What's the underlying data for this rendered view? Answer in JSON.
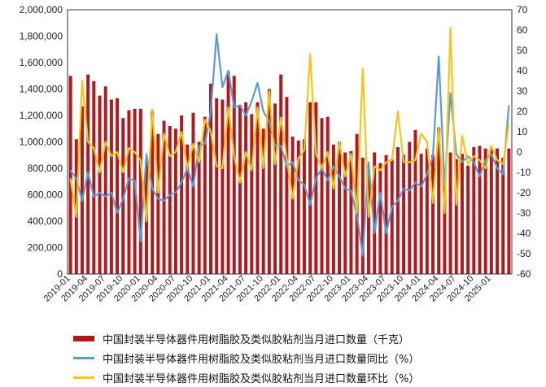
{
  "chart_data": {
    "type": "bar+line",
    "title": "",
    "months": [
      "2019-01",
      "2019-02",
      "2019-03",
      "2019-04",
      "2019-05",
      "2019-06",
      "2019-07",
      "2019-08",
      "2019-09",
      "2019-10",
      "2019-11",
      "2019-12",
      "2020-01",
      "2020-02",
      "2020-03",
      "2020-04",
      "2020-05",
      "2020-06",
      "2020-07",
      "2020-08",
      "2020-09",
      "2020-10",
      "2020-11",
      "2020-12",
      "2021-01",
      "2021-02",
      "2021-03",
      "2021-04",
      "2021-05",
      "2021-06",
      "2021-07",
      "2021-08",
      "2021-09",
      "2021-10",
      "2021-11",
      "2021-12",
      "2022-01",
      "2022-02",
      "2022-03",
      "2022-04",
      "2022-05",
      "2022-06",
      "2022-07",
      "2022-08",
      "2022-09",
      "2022-10",
      "2022-11",
      "2022-12",
      "2023-01",
      "2023-02",
      "2023-03",
      "2023-04",
      "2023-05",
      "2023-06",
      "2023-07",
      "2023-08",
      "2023-09",
      "2023-10",
      "2023-11",
      "2023-12",
      "2024-01",
      "2024-02",
      "2024-03",
      "2024-04",
      "2024-05",
      "2024-06",
      "2024-07",
      "2024-08",
      "2024-09",
      "2024-10",
      "2024-11",
      "2024-12",
      "2025-01",
      "2025-02",
      "2025-03",
      "2025-04"
    ],
    "x_tick_labels": [
      "2019-01",
      "2019-04",
      "2019-07",
      "2019-10",
      "2020-01",
      "2020-04",
      "2020-07",
      "2020-10",
      "2021-01",
      "2021-04",
      "2021-07",
      "2021-10",
      "2022-01",
      "2022-04",
      "2022-07",
      "2022-10",
      "2023-01",
      "2023-04",
      "2023-07",
      "2023-10",
      "2024-01",
      "2024-04",
      "2024-07",
      "2024-10",
      "2025-01"
    ],
    "y_left": {
      "min": 0,
      "max": 2000000,
      "step": 200000,
      "tick_labels": [
        "0",
        "200,000",
        "400,000",
        "600,000",
        "800,000",
        "1,000,000",
        "1,200,000",
        "1,400,000",
        "1,600,000",
        "1,800,000",
        "2,000,000"
      ]
    },
    "y_right": {
      "min": -60,
      "max": 70,
      "step": 10,
      "tick_labels": [
        "-60",
        "-50",
        "-40",
        "-30",
        "-20",
        "-10",
        "0",
        "10",
        "20",
        "30",
        "40",
        "50",
        "60",
        "70"
      ]
    },
    "series": [
      {
        "name": "中国封装半导体器件用树脂胶及类似胶粘剂当月进口数量（千克）",
        "type": "bar",
        "axis": "left",
        "color": "#b5161a",
        "values": [
          1500000,
          1020000,
          1270000,
          1510000,
          1460000,
          1350000,
          1420000,
          1320000,
          1330000,
          1180000,
          1240000,
          1250000,
          1250000,
          850000,
          1230000,
          1060000,
          1160000,
          1120000,
          1100000,
          1200000,
          980000,
          1220000,
          1000000,
          1190000,
          1440000,
          1330000,
          1320000,
          1530000,
          1500000,
          1280000,
          1300000,
          1210000,
          1300000,
          1100000,
          1400000,
          1290000,
          1510000,
          1340000,
          1040000,
          1010000,
          1020000,
          1300000,
          1300000,
          1180000,
          1190000,
          980000,
          1000000,
          920000,
          930000,
          1060000,
          880000,
          750000,
          920000,
          840000,
          900000,
          870000,
          960000,
          900000,
          1000000,
          1090000,
          910000,
          950000,
          900000,
          1110000,
          690000,
          920000,
          870000,
          910000,
          820000,
          960000,
          970000,
          950000,
          960000,
          950000,
          880000,
          950000
        ]
      },
      {
        "name": "中国封装半导体器件用树脂胶及类似胶粘剂当月进口数量同比（%）",
        "type": "line",
        "axis": "right",
        "color": "#5b9bd5",
        "values": [
          -9,
          -13,
          -24,
          -10,
          -22,
          -20,
          -22,
          -20,
          -30,
          -23,
          -13,
          -14,
          -44,
          -1,
          -18,
          -23,
          -24,
          -21,
          -20,
          -15,
          -8,
          -17,
          3,
          4,
          20,
          58,
          32,
          40,
          22,
          23,
          18,
          25,
          34,
          20,
          15,
          3,
          3,
          -7,
          -5,
          -14,
          -16,
          -26,
          -13,
          -8,
          -14,
          -7,
          -12,
          -18,
          -19,
          -31,
          -51,
          -5,
          -40,
          -20,
          -40,
          -27,
          -24,
          -18,
          -19,
          -15,
          -17,
          -11,
          -2,
          47,
          -17,
          29,
          -1,
          -5,
          -2,
          -5,
          -12,
          -4,
          -1,
          -8,
          -11,
          23
        ]
      },
      {
        "name": "中国封装半导体器件用树脂胶及类似胶粘剂当月进口数量环比（%）",
        "type": "line",
        "axis": "right",
        "color": "#f5c518",
        "values": [
          -13,
          -32,
          35,
          5,
          2,
          -10,
          5,
          -2,
          0,
          -10,
          2,
          0,
          -4,
          -34,
          21,
          -20,
          9,
          -2,
          0,
          10,
          -8,
          4,
          -5,
          16,
          10,
          -7,
          -8,
          22,
          -2,
          -15,
          0,
          -9,
          22,
          -8,
          30,
          -6,
          17,
          -3,
          -23,
          -3,
          1,
          48,
          -1,
          -8,
          0,
          -18,
          5,
          -12,
          -1,
          -30,
          41,
          -32,
          -7,
          -9,
          -5,
          -4,
          20,
          -5,
          -5,
          -4,
          9,
          5,
          -25,
          12,
          -30,
          61,
          -26,
          8,
          -6,
          -2,
          -4,
          -8,
          3,
          -4,
          -6,
          14
        ]
      }
    ]
  }
}
